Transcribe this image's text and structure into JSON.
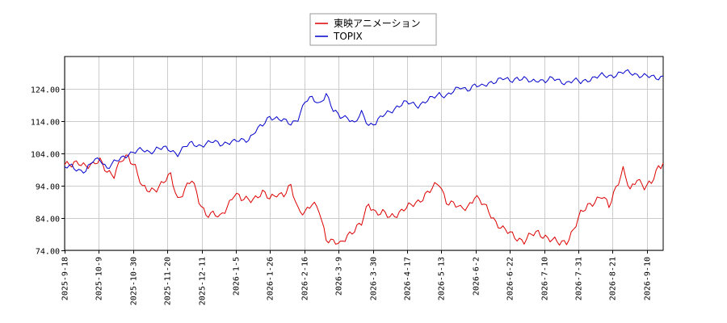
{
  "chart_data": {
    "type": "line",
    "title": "",
    "xlabel": "",
    "ylabel": "",
    "ylim": [
      74,
      134
    ],
    "y_ticks": [
      74,
      84,
      94,
      104,
      114,
      124
    ],
    "y_tick_labels": [
      "74.00",
      "84.00",
      "94.00",
      "104.00",
      "114.00",
      "124.00"
    ],
    "x_tick_labels": [
      "2025-9-18",
      "2025-10-9",
      "2025-10-30",
      "2025-11-20",
      "2025-12-11",
      "2026-1-5",
      "2026-1-26",
      "2026-2-16",
      "2026-3-9",
      "2026-3-30",
      "2026-4-17",
      "2026-5-13",
      "2026-6-2",
      "2026-6-22",
      "2026-7-10",
      "2026-7-31",
      "2026-8-21",
      "2026-9-10"
    ],
    "grid": true,
    "legend_position": "top-center",
    "x_index_range": [
      0,
      254
    ],
    "series": [
      {
        "name": "東映アニメーション",
        "color": "#dd0000",
        "x": [
          0,
          3,
          6,
          9,
          12,
          15,
          18,
          21,
          24,
          27,
          30,
          33,
          36,
          39,
          42,
          45,
          48,
          51,
          54,
          57,
          60,
          63,
          66,
          69,
          72,
          75,
          78,
          81,
          84,
          87,
          90,
          93,
          96,
          99,
          102,
          105,
          108,
          111,
          114,
          117,
          120,
          123,
          126,
          129,
          132,
          135,
          138,
          141,
          144,
          147,
          150,
          153,
          156,
          159,
          162,
          165,
          168,
          171,
          174,
          177,
          180,
          183,
          186,
          189,
          192,
          195,
          198,
          201,
          204,
          207,
          210,
          213,
          216,
          219,
          222,
          225,
          228,
          231,
          234,
          237,
          240,
          243,
          246,
          249,
          252,
          254
        ],
        "values": [
          100.5,
          100.0,
          101.5,
          100.5,
          100.0,
          101.8,
          99.0,
          97.0,
          101.5,
          103.5,
          100.0,
          93.0,
          92.5,
          93.5,
          95.0,
          97.0,
          90.0,
          93.0,
          95.5,
          89.5,
          85.5,
          85.0,
          84.0,
          88.0,
          91.5,
          89.5,
          90.0,
          90.5,
          91.5,
          90.0,
          92.0,
          91.0,
          93.5,
          87.0,
          86.0,
          88.0,
          86.5,
          78.0,
          76.5,
          75.5,
          79.0,
          80.5,
          82.0,
          88.5,
          86.0,
          85.5,
          84.0,
          85.5,
          87.0,
          87.5,
          89.0,
          91.5,
          93.0,
          94.5,
          89.5,
          88.5,
          86.5,
          87.5,
          91.0,
          88.5,
          86.0,
          83.0,
          80.5,
          79.0,
          78.0,
          77.0,
          78.5,
          79.5,
          78.5,
          77.0,
          76.0,
          77.0,
          80.5,
          85.0,
          88.0,
          89.5,
          90.5,
          87.5,
          94.0,
          99.0,
          92.0,
          96.5,
          94.0,
          94.5,
          99.5,
          101.0
        ]
      },
      {
        "name": "TOPIX",
        "color": "#0000cc",
        "x": [
          0,
          3,
          6,
          9,
          12,
          15,
          18,
          21,
          24,
          27,
          30,
          33,
          36,
          39,
          42,
          45,
          48,
          51,
          54,
          57,
          60,
          63,
          66,
          69,
          72,
          75,
          78,
          81,
          84,
          87,
          90,
          93,
          96,
          99,
          102,
          105,
          108,
          111,
          114,
          117,
          120,
          123,
          126,
          129,
          132,
          135,
          138,
          141,
          144,
          147,
          150,
          153,
          156,
          159,
          162,
          165,
          168,
          171,
          174,
          177,
          180,
          183,
          186,
          189,
          192,
          195,
          198,
          201,
          204,
          207,
          210,
          213,
          216,
          219,
          222,
          225,
          228,
          231,
          234,
          237,
          240,
          243,
          246,
          249,
          252,
          254
        ],
        "values": [
          99.5,
          100.0,
          99.0,
          98.5,
          101.5,
          102.5,
          99.5,
          101.0,
          102.5,
          104.0,
          104.5,
          105.0,
          104.5,
          105.5,
          105.5,
          105.0,
          104.0,
          106.0,
          107.0,
          106.5,
          107.0,
          107.5,
          107.0,
          107.5,
          107.5,
          108.0,
          108.5,
          111.0,
          112.5,
          115.5,
          115.0,
          114.0,
          113.0,
          115.0,
          120.0,
          121.0,
          119.5,
          122.5,
          117.0,
          115.5,
          115.5,
          113.0,
          116.5,
          113.0,
          113.5,
          115.5,
          117.0,
          118.5,
          119.5,
          119.5,
          119.0,
          120.0,
          121.0,
          122.5,
          122.0,
          123.0,
          124.5,
          124.0,
          125.0,
          124.5,
          126.0,
          126.5,
          127.0,
          126.5,
          127.5,
          127.0,
          126.0,
          127.0,
          126.5,
          127.0,
          126.5,
          126.0,
          126.5,
          126.0,
          127.0,
          127.5,
          128.0,
          128.0,
          128.5,
          129.0,
          129.0,
          128.5,
          128.0,
          127.5,
          127.5,
          128.0
        ]
      }
    ]
  }
}
